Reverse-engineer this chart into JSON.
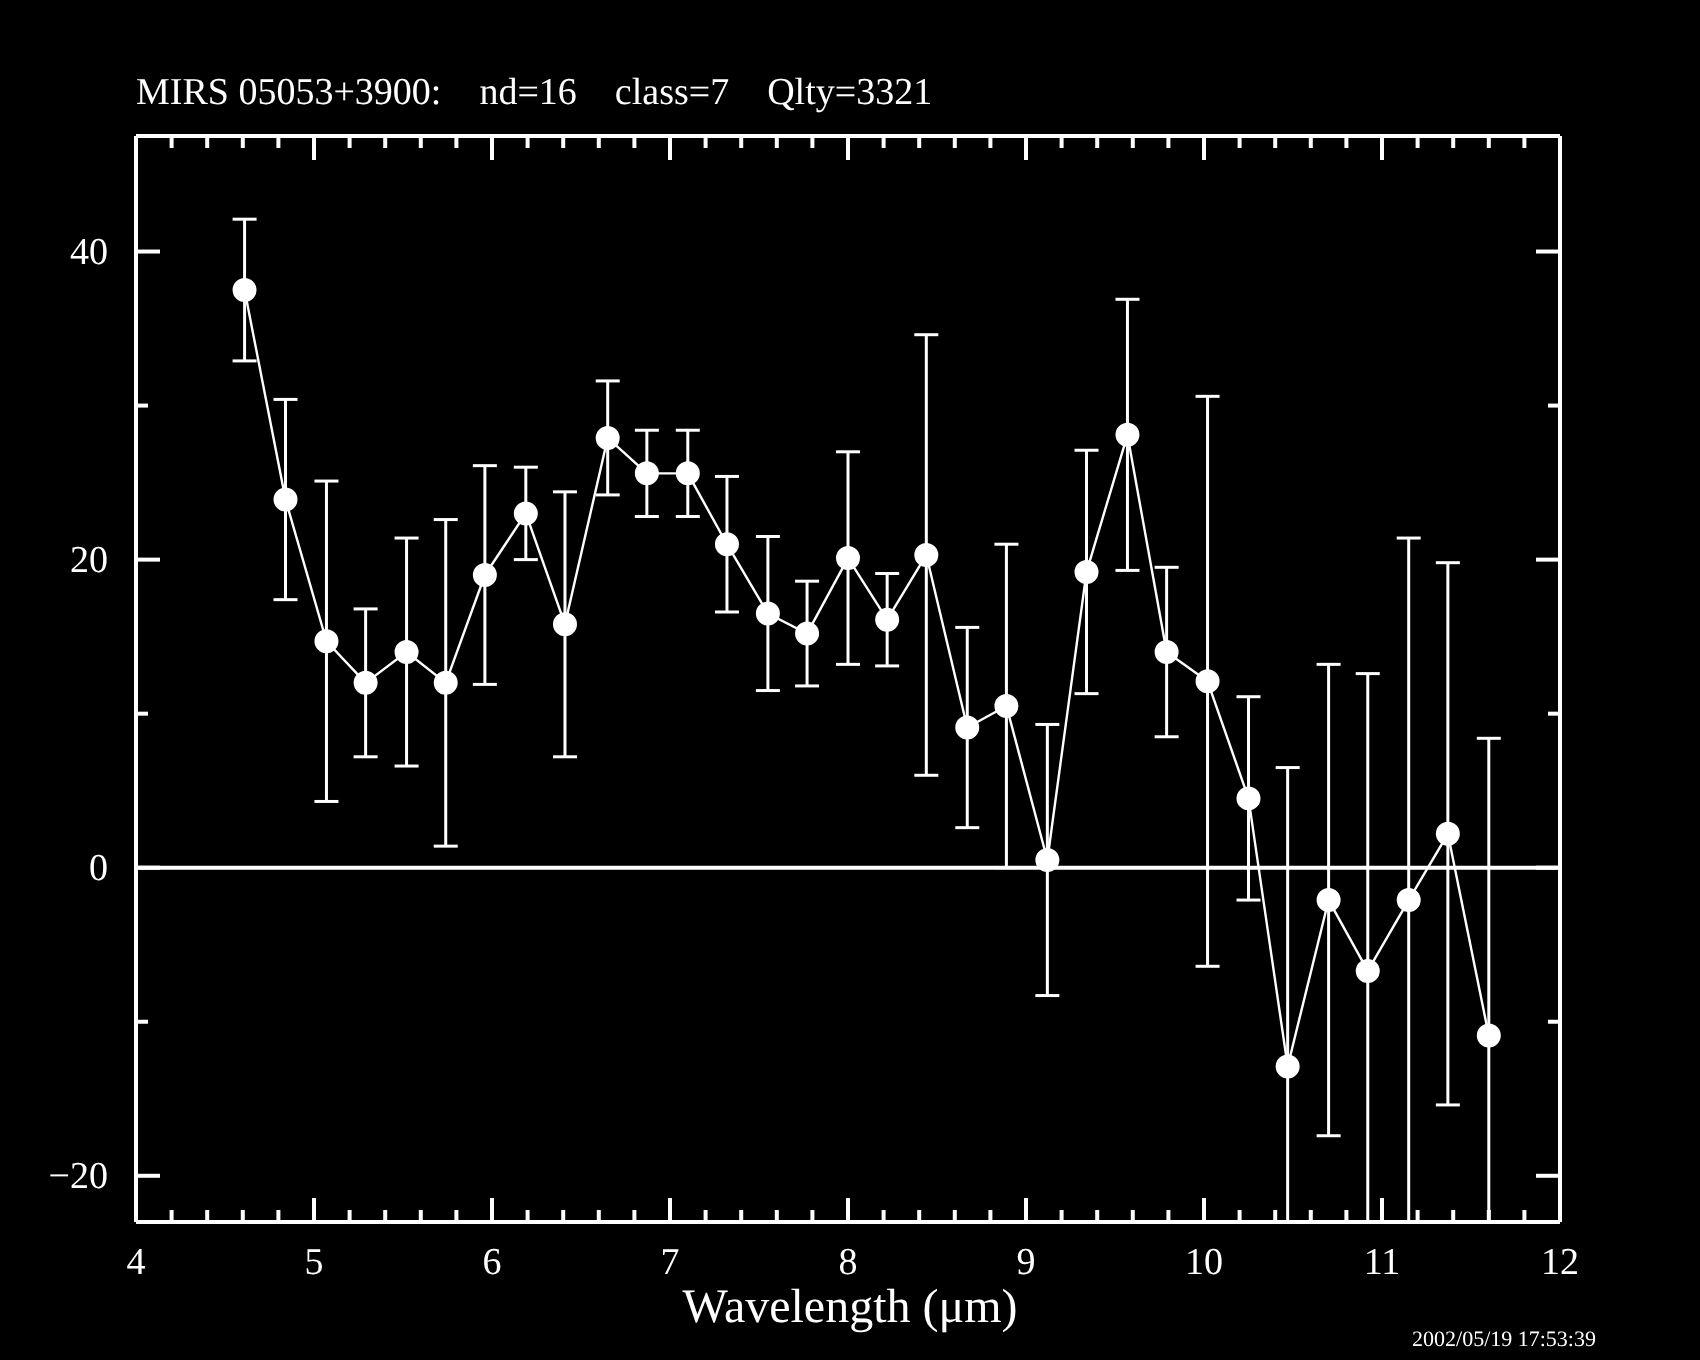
{
  "chart_data": {
    "type": "line",
    "title": "MIRS 05053+3900:    nd=16    class=7    Qlty=3321",
    "xlabel": "Wavelength (μm)",
    "annotations": [
      "2002/05/19 17:53:39"
    ],
    "x": [
      4.61,
      4.84,
      5.07,
      5.29,
      5.52,
      5.74,
      5.96,
      6.19,
      6.41,
      6.65,
      6.87,
      7.1,
      7.32,
      7.55,
      7.77,
      8.0,
      8.22,
      8.44,
      8.67,
      8.89,
      9.12,
      9.34,
      9.57,
      9.79,
      10.02,
      10.25,
      10.47,
      10.7,
      10.92,
      11.15,
      11.37,
      11.6
    ],
    "values": [
      37.5,
      23.9,
      14.7,
      12.0,
      14.0,
      12.0,
      19.0,
      23.0,
      15.8,
      27.9,
      25.6,
      25.6,
      21.0,
      16.5,
      15.2,
      20.1,
      16.1,
      20.3,
      9.1,
      10.5,
      0.5,
      19.2,
      28.1,
      14.0,
      12.1,
      4.5,
      -12.9,
      -2.1,
      -6.7,
      -2.1,
      2.2,
      -10.9
    ],
    "errors": [
      4.6,
      6.5,
      10.4,
      4.8,
      7.4,
      10.6,
      7.1,
      3.0,
      8.6,
      3.7,
      2.8,
      2.8,
      4.4,
      5.0,
      3.4,
      6.9,
      3.0,
      14.3,
      6.5,
      10.5,
      8.8,
      7.9,
      8.8,
      5.5,
      18.5,
      6.6,
      [
        -23,
        6.5
      ],
      15.3,
      [
        -23,
        12.6
      ],
      [
        -23,
        21.4
      ],
      17.6,
      [
        -23,
        8.4
      ]
    ],
    "color": "#ffffff",
    "marker": "circle",
    "ref_lines": [
      {
        "axis": "y",
        "value": 0,
        "color": "#ffffff"
      }
    ],
    "xlim": [
      4,
      12
    ],
    "ylim": [
      -23,
      47.5
    ],
    "xticks": [
      4,
      {
        "value": 4.2,
        "label": null
      },
      {
        "value": 4.4,
        "label": null
      },
      {
        "value": 4.6,
        "label": null
      },
      {
        "value": 4.8,
        "label": null
      },
      5,
      {
        "value": 5.2,
        "label": null
      },
      {
        "value": 5.4,
        "label": null
      },
      {
        "value": 5.6,
        "label": null
      },
      {
        "value": 5.8,
        "label": null
      },
      6,
      {
        "value": 6.2,
        "label": null
      },
      {
        "value": 6.4,
        "label": null
      },
      {
        "value": 6.6,
        "label": null
      },
      {
        "value": 6.8,
        "label": null
      },
      7,
      {
        "value": 7.2,
        "label": null
      },
      {
        "value": 7.4,
        "label": null
      },
      {
        "value": 7.6,
        "label": null
      },
      {
        "value": 7.8,
        "label": null
      },
      8,
      {
        "value": 8.2,
        "label": null
      },
      {
        "value": 8.4,
        "label": null
      },
      {
        "value": 8.6,
        "label": null
      },
      {
        "value": 8.8,
        "label": null
      },
      9,
      {
        "value": 9.2,
        "label": null
      },
      {
        "value": 9.4,
        "label": null
      },
      {
        "value": 9.6,
        "label": null
      },
      {
        "value": 9.8,
        "label": null
      },
      10,
      {
        "value": 10.2,
        "label": null
      },
      {
        "value": 10.4,
        "label": null
      },
      {
        "value": 10.6,
        "label": null
      },
      {
        "value": 10.8,
        "label": null
      },
      11,
      {
        "value": 11.2,
        "label": null
      },
      {
        "value": 11.4,
        "label": null
      },
      {
        "value": 11.6,
        "label": null
      },
      {
        "value": 11.8,
        "label": null
      },
      12
    ],
    "yticks": [
      -20,
      {
        "value": -10,
        "label": null
      },
      0,
      {
        "value": 10,
        "label": null
      },
      20,
      {
        "value": 30,
        "label": null
      },
      40
    ]
  }
}
